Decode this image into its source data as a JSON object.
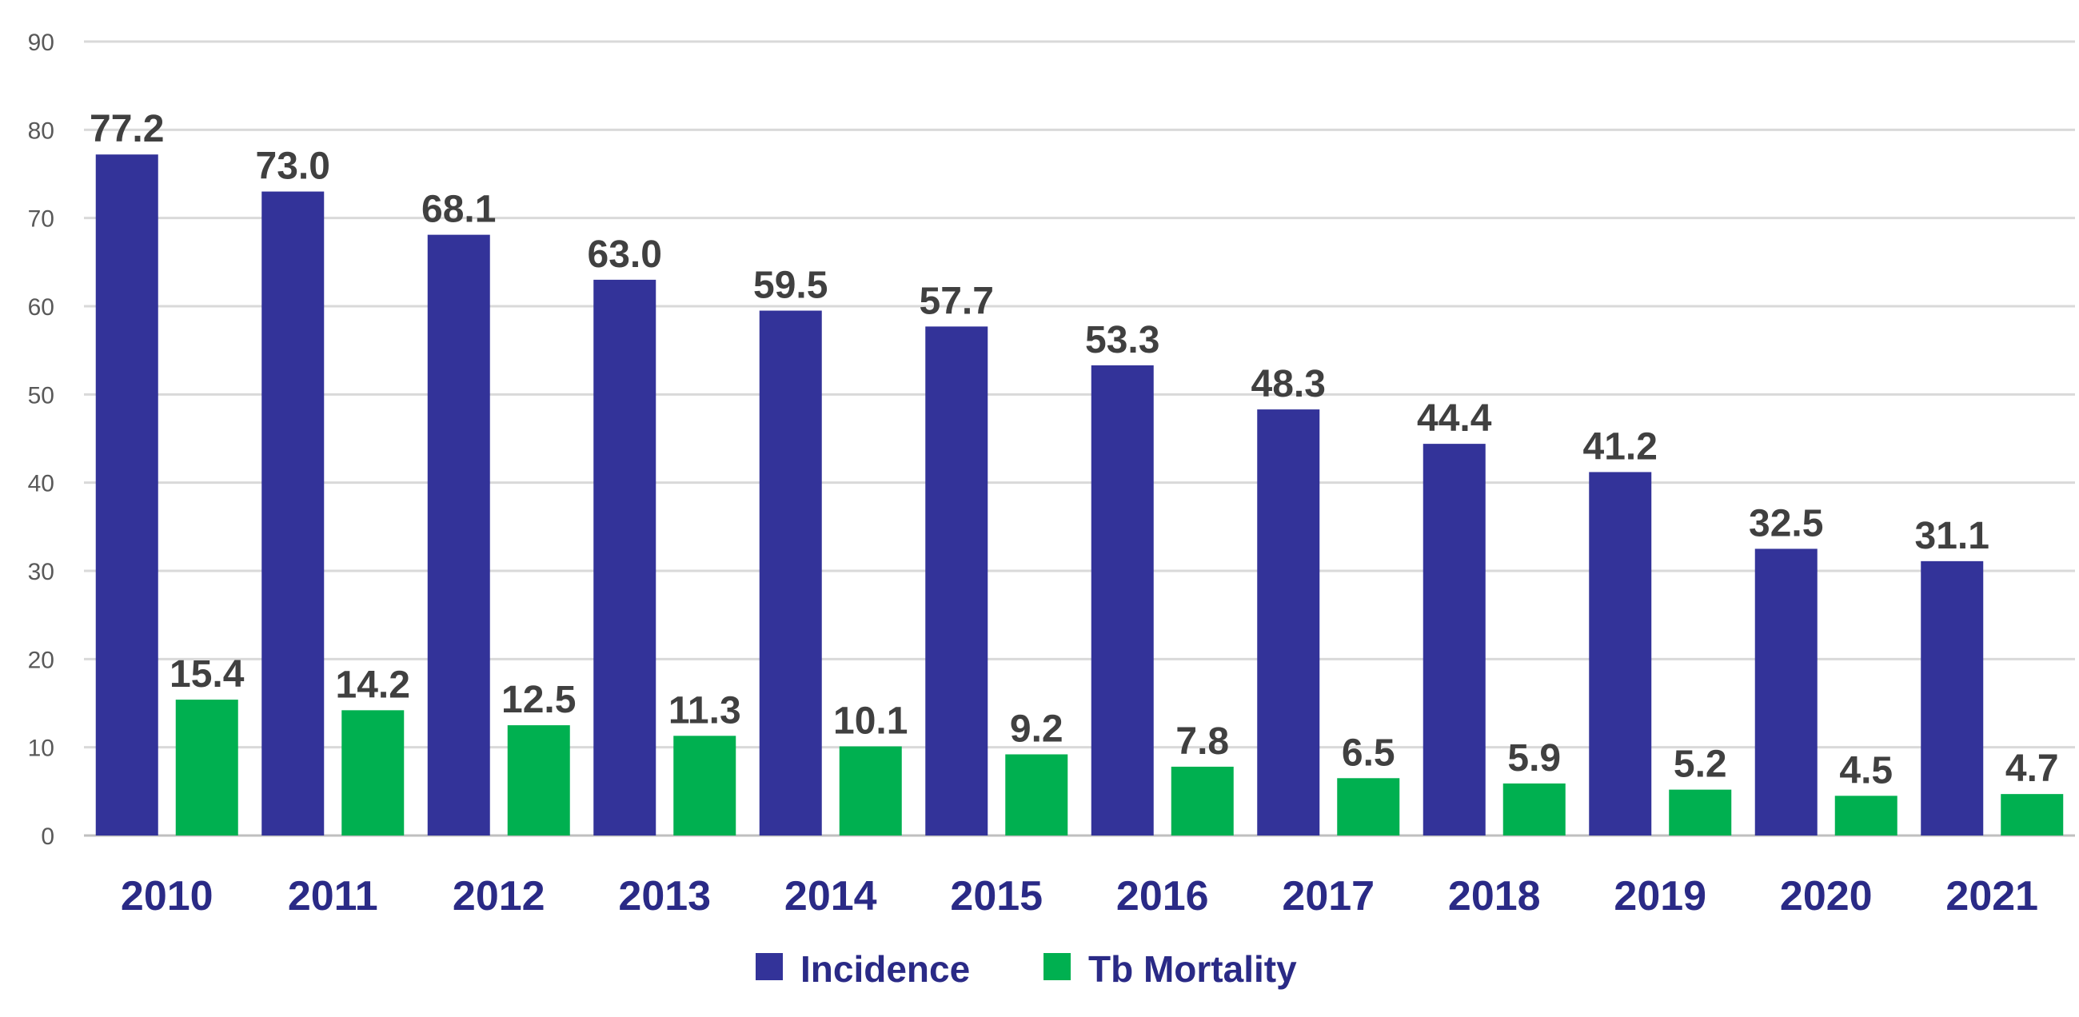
{
  "chart_data": {
    "type": "bar",
    "title": "",
    "xlabel": "",
    "ylabel": "",
    "ylim": [
      0,
      90
    ],
    "yticks": [
      0,
      10,
      20,
      30,
      40,
      50,
      60,
      70,
      80,
      90
    ],
    "categories": [
      "2010",
      "2011",
      "2012",
      "2013",
      "2014",
      "2015",
      "2016",
      "2017",
      "2018",
      "2019",
      "2020",
      "2021"
    ],
    "series": [
      {
        "name": "Incidence",
        "color": "#333399",
        "values": [
          77.2,
          73.0,
          68.1,
          63.0,
          59.5,
          57.7,
          53.3,
          48.3,
          44.4,
          41.2,
          32.5,
          31.1
        ],
        "labels": [
          "77.2",
          "73.0",
          "68.1",
          "63.0",
          "59.5",
          "57.7",
          "53.3",
          "48.3",
          "44.4",
          "41.2",
          "32.5",
          "31.1"
        ]
      },
      {
        "name": "Tb Mortality",
        "color": "#00b050",
        "values": [
          15.4,
          14.2,
          12.5,
          11.3,
          10.1,
          9.2,
          7.8,
          6.5,
          5.9,
          5.2,
          4.5,
          4.7
        ],
        "labels": [
          "15.4",
          "14.2",
          "12.5",
          "11.3",
          "10.1",
          "9.2",
          "7.8",
          "6.5",
          "5.9",
          "5.2",
          "4.5",
          "4.7"
        ]
      }
    ],
    "grid": true,
    "legend_position": "bottom-center"
  }
}
